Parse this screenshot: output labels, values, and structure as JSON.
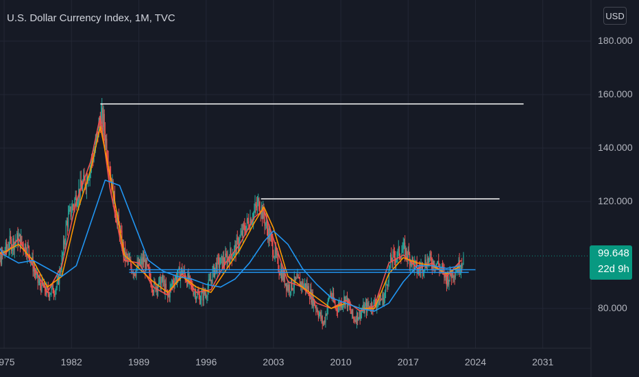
{
  "header": {
    "title": "U.S. Dollar Currency Index, 1M, TVC",
    "currency_button": "USD"
  },
  "price_badge": {
    "price": "99.648",
    "countdown": "22d 9h"
  },
  "colors": {
    "background": "#161a25",
    "grid": "#232735",
    "candle_up": "#26a69a",
    "candle_down": "#ef5350",
    "fast_ma": "#ef5350",
    "mid_ma": "#ff9800",
    "slow_ma": "#2196f3",
    "trend_line": "#ffffff",
    "support_line": "#2196f3",
    "badge": "#089981"
  },
  "chart_data": {
    "type": "line",
    "title": "U.S. Dollar Currency Index, 1M, TVC",
    "interval": "1M",
    "source": "TVC",
    "currency": "USD",
    "xlabel": "",
    "ylabel": "",
    "x_ticks": [
      "1975",
      "1982",
      "1989",
      "1996",
      "2003",
      "2010",
      "2017",
      "2024",
      "2031"
    ],
    "y_ticks": [
      "80.000",
      "120.000",
      "140.000",
      "160.000",
      "180.000"
    ],
    "xlim": [
      1973.5,
      2035.0
    ],
    "ylim": [
      65,
      190
    ],
    "grid": true,
    "legend": "none",
    "last_price": 99.648,
    "series": [
      {
        "style": "candles",
        "x": [
          1973.5,
          1974.5,
          1975.5,
          1976.5,
          1977.5,
          1978.5,
          1979.5,
          1980.5,
          1981.0,
          1981.5,
          1982.5,
          1983.5,
          1984.5,
          1985.0,
          1985.3,
          1986.0,
          1986.5,
          1987.5,
          1988.5,
          1989.5,
          1990.5,
          1991.5,
          1992.0,
          1992.5,
          1993.5,
          1994.5,
          1995.3,
          1996.0,
          1997.0,
          1998.0,
          1999.0,
          2000.0,
          2001.0,
          2001.5,
          2002.0,
          2002.5,
          2003.5,
          2004.5,
          2005.5,
          2006.5,
          2007.5,
          2008.2,
          2008.9,
          2009.5,
          2010.5,
          2011.3,
          2012.5,
          2013.5,
          2014.5,
          2015.2,
          2016.5,
          2017.0,
          2018.0,
          2019.0,
          2020.0,
          2020.5,
          2021.0,
          2021.5,
          2022.3,
          2022.8
        ],
        "y": [
          100,
          98,
          104,
          106,
          102,
          90,
          86,
          88,
          98,
          112,
          122,
          128,
          140,
          152,
          150,
          132,
          118,
          100,
          94,
          98,
          88,
          90,
          84,
          90,
          94,
          88,
          84,
          86,
          96,
          98,
          102,
          110,
          116,
          120,
          114,
          108,
          96,
          88,
          90,
          88,
          80,
          74,
          86,
          80,
          84,
          76,
          80,
          82,
          84,
          98,
          102,
          100,
          94,
          98,
          97,
          94,
          91,
          93,
          96,
          99.648
        ]
      },
      {
        "name": "",
        "style": "fast_ma",
        "x": [
          1973.5,
          1975.0,
          1976.5,
          1978.0,
          1979.5,
          1981.0,
          1982.5,
          1984.0,
          1985.0,
          1986.0,
          1987.5,
          1989.0,
          1990.5,
          1992.0,
          1993.5,
          1995.0,
          1996.5,
          1998.0,
          1999.5,
          2001.0,
          2002.0,
          2003.0,
          2004.5,
          2006.0,
          2007.5,
          2009.0,
          2010.5,
          2012.0,
          2013.5,
          2015.0,
          2016.5,
          2018.0,
          2019.5,
          2021.0,
          2022.5
        ],
        "y": [
          102,
          100,
          106,
          96,
          86,
          96,
          120,
          135,
          152,
          125,
          98,
          97,
          88,
          85,
          93,
          86,
          87,
          97,
          104,
          114,
          117,
          106,
          90,
          88,
          82,
          80,
          83,
          79,
          81,
          97,
          100,
          95,
          97,
          92,
          98
        ]
      },
      {
        "name": "",
        "style": "mid_ma",
        "x": [
          1973.5,
          1975.0,
          1976.5,
          1978.0,
          1979.5,
          1981.0,
          1982.5,
          1984.0,
          1985.0,
          1986.0,
          1987.5,
          1989.0,
          1990.5,
          1992.0,
          1993.5,
          1995.0,
          1996.5,
          1998.0,
          1999.5,
          2001.0,
          2002.0,
          2003.0,
          2004.5,
          2006.0,
          2007.5,
          2009.0,
          2010.5,
          2012.0,
          2013.5,
          2015.0,
          2016.5,
          2018.0,
          2019.5,
          2021.0,
          2022.5
        ],
        "y": [
          100,
          101,
          104,
          98,
          88,
          92,
          115,
          132,
          148,
          130,
          100,
          95,
          90,
          86,
          92,
          88,
          86,
          94,
          102,
          112,
          118,
          110,
          92,
          88,
          84,
          80,
          82,
          80,
          80,
          93,
          99,
          97,
          96,
          93,
          96
        ]
      },
      {
        "name": "",
        "style": "slow_ma",
        "x": [
          1973.5,
          1975.0,
          1976.5,
          1978.0,
          1979.5,
          1981.0,
          1982.5,
          1984.0,
          1985.5,
          1987.0,
          1988.5,
          1990.0,
          1991.5,
          1993.0,
          1994.5,
          1996.0,
          1997.5,
          1999.0,
          2000.5,
          2002.0,
          2003.0,
          2004.5,
          2006.0,
          2007.5,
          2009.0,
          2010.5,
          2012.0,
          2013.5,
          2015.0,
          2016.5,
          2018.0,
          2019.5,
          2021.0,
          2022.5
        ],
        "y": [
          108,
          100,
          97,
          98,
          95,
          92,
          96,
          112,
          128,
          126,
          112,
          98,
          94,
          92,
          91,
          89,
          88,
          91,
          97,
          105,
          109,
          104,
          95,
          89,
          84,
          82,
          80,
          79,
          82,
          90,
          96,
          96,
          95,
          96
        ]
      }
    ],
    "annotations": [
      {
        "type": "horizontal_ray",
        "style": "trend_line",
        "x": [
          1985.0,
          2029.0
        ],
        "y": 156.5
      },
      {
        "type": "horizontal_ray",
        "style": "trend_line",
        "x": [
          2001.7,
          2026.5
        ],
        "y": 121.0
      },
      {
        "type": "horizontal_ray",
        "style": "support_line",
        "x": [
          1988.0,
          2024.0
        ],
        "y": 94.5
      },
      {
        "type": "horizontal_ray",
        "style": "support_line",
        "x": [
          1988.0,
          2023.3
        ],
        "y": 93.5
      }
    ]
  }
}
